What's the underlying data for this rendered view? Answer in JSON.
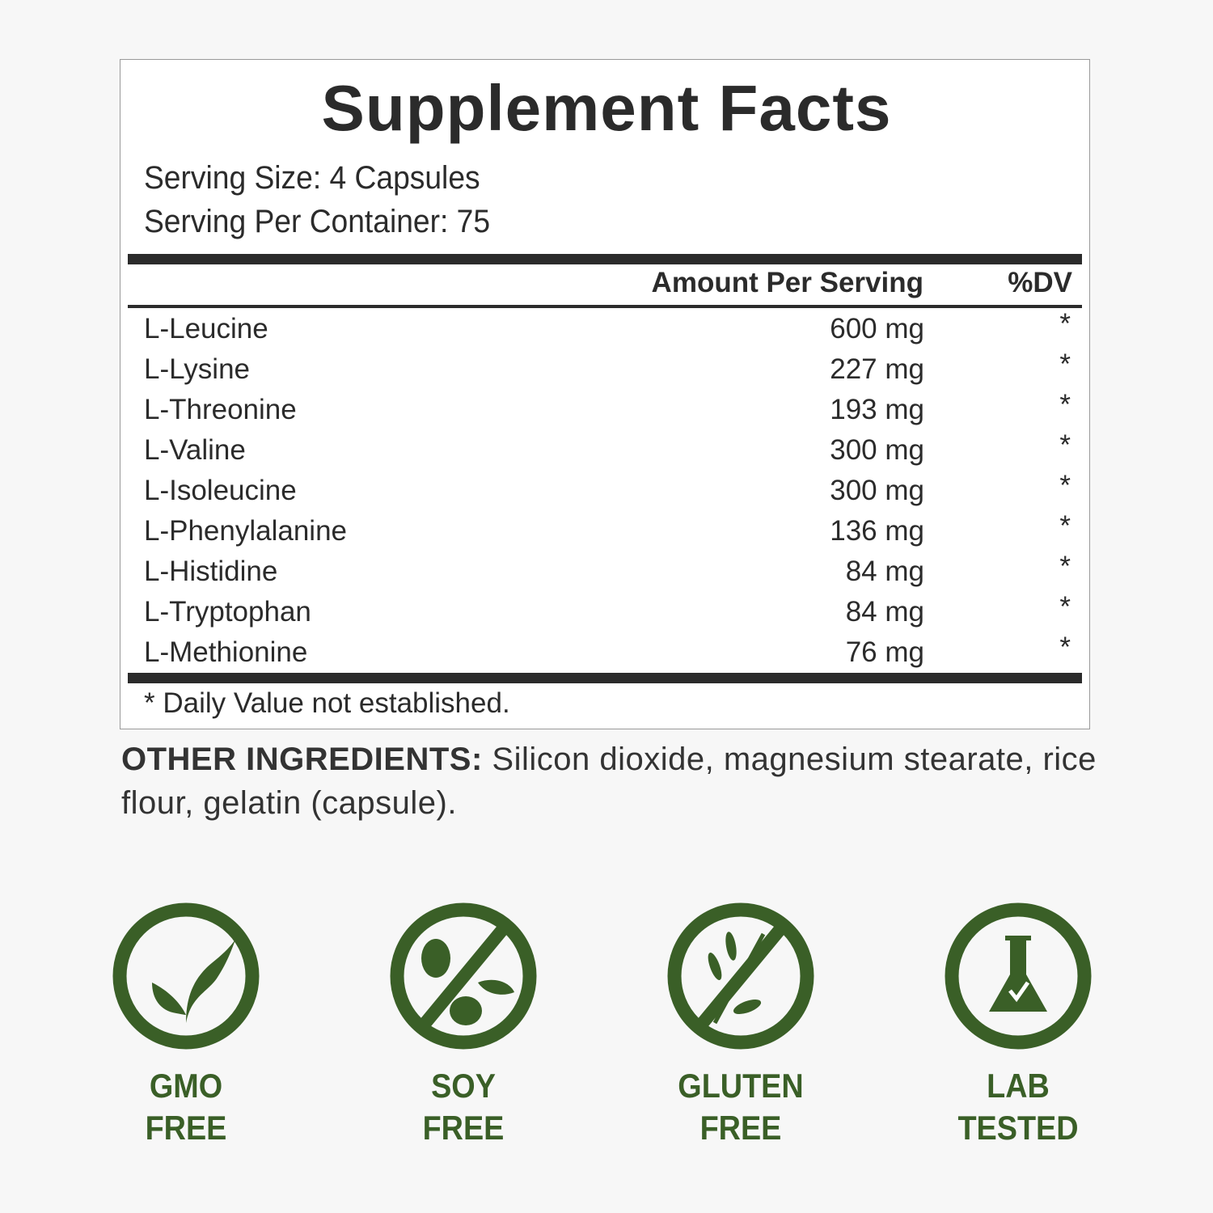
{
  "title": "Supplement Facts",
  "serving_size": "Serving Size: 4 Capsules",
  "servings_per_container": "Serving Per Container: 75",
  "header": {
    "amount": "Amount Per Serving",
    "dv": "%DV"
  },
  "rows": [
    {
      "name": "L-Leucine",
      "amount": "600 mg",
      "dv": "*"
    },
    {
      "name": "L-Lysine",
      "amount": "227 mg",
      "dv": "*"
    },
    {
      "name": "L-Threonine",
      "amount": "193 mg",
      "dv": "*"
    },
    {
      "name": "L-Valine",
      "amount": "300 mg",
      "dv": "*"
    },
    {
      "name": "L-Isoleucine",
      "amount": "300 mg",
      "dv": "*"
    },
    {
      "name": "L-Phenylalanine",
      "amount": "136 mg",
      "dv": "*"
    },
    {
      "name": "L-Histidine",
      "amount": "84 mg",
      "dv": "*"
    },
    {
      "name": "L-Tryptophan",
      "amount": "84 mg",
      "dv": "*"
    },
    {
      "name": "L-Methionine",
      "amount": "76 mg",
      "dv": "*"
    }
  ],
  "footnote": "* Daily Value not established.",
  "other_ingredients": {
    "label": "OTHER INGREDIENTS:",
    "text": " Silicon dioxide, magnesium stearate, rice flour, gelatin (capsule)."
  },
  "badges": [
    {
      "icon": "leaf-icon",
      "line1": "GMO",
      "line2": "FREE"
    },
    {
      "icon": "no-soy-icon",
      "line1": "SOY",
      "line2": "FREE"
    },
    {
      "icon": "no-wheat-icon",
      "line1": "GLUTEN",
      "line2": "FREE"
    },
    {
      "icon": "flask-check-icon",
      "line1": "LAB",
      "line2": "TESTED"
    }
  ],
  "colors": {
    "accent": "#3a5f27",
    "text": "#2b2b2b"
  }
}
